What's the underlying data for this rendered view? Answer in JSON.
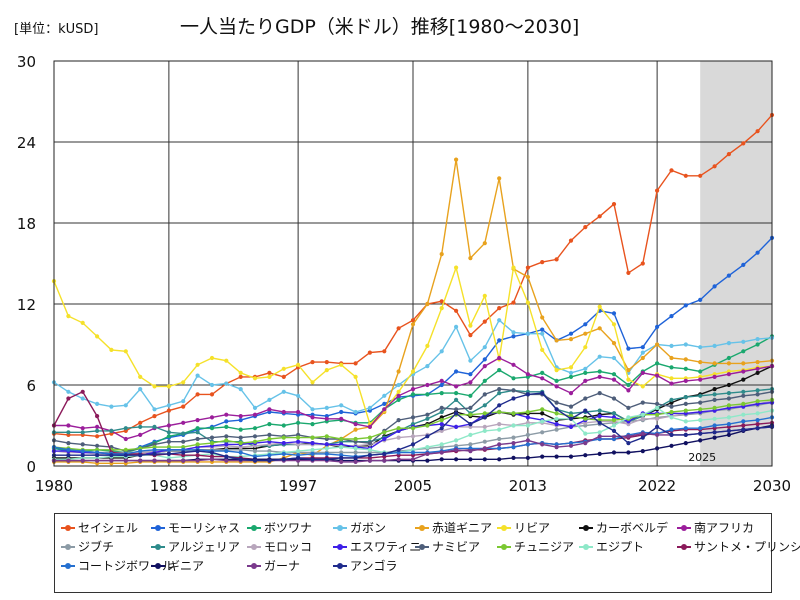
{
  "header": {
    "unit": "[単位：kUSD]"
  },
  "chart_data": {
    "type": "line",
    "title": "一人当たりGDP（米ドル）推移[1980～2030]",
    "ylabel": "単位：kUSD",
    "x": [
      1980,
      1981,
      1982,
      1983,
      1984,
      1985,
      1986,
      1987,
      1988,
      1989,
      1990,
      1991,
      1992,
      1993,
      1994,
      1995,
      1996,
      1997,
      1998,
      1999,
      2000,
      2001,
      2002,
      2003,
      2004,
      2005,
      2006,
      2007,
      2008,
      2009,
      2010,
      2011,
      2012,
      2013,
      2014,
      2015,
      2016,
      2017,
      2018,
      2019,
      2020,
      2021,
      2022,
      2023,
      2024,
      2025,
      2026,
      2027,
      2028,
      2029,
      2030
    ],
    "xlim": [
      1980,
      2030
    ],
    "ylim": [
      0,
      30
    ],
    "x_ticks": [
      "1980",
      "1988",
      "1997",
      "2005",
      "2013",
      "2022",
      "2030"
    ],
    "y_ticks": [
      "0",
      "6",
      "12",
      "18",
      "24",
      "30"
    ],
    "forecast_start": 2025,
    "forecast_label": "2025",
    "grid": true,
    "legend_position": "bottom",
    "series": [
      {
        "name": "セイシェル",
        "color": "#E8531E",
        "values": [
          2.4,
          2.3,
          2.3,
          2.2,
          2.4,
          2.6,
          3.2,
          3.7,
          4.1,
          4.4,
          5.3,
          5.3,
          6.1,
          6.6,
          6.6,
          6.9,
          6.6,
          7.3,
          7.7,
          7.7,
          7.6,
          7.6,
          8.4,
          8.5,
          10.2,
          10.8,
          12.0,
          12.2,
          11.5,
          9.7,
          10.7,
          11.7,
          12.1,
          14.7,
          15.1,
          15.3,
          16.7,
          17.7,
          18.5,
          19.4,
          14.3,
          15.0,
          20.4,
          21.9,
          21.5,
          21.5,
          22.2,
          23.1,
          23.9,
          24.8,
          26.0
        ]
      },
      {
        "name": "モーリシャス",
        "color": "#1F63D8",
        "values": [
          1.3,
          1.1,
          1.0,
          1.0,
          0.9,
          1.0,
          1.4,
          1.8,
          2.1,
          2.3,
          2.7,
          2.9,
          3.3,
          3.4,
          3.7,
          4.0,
          3.9,
          3.8,
          3.8,
          3.7,
          4.0,
          3.9,
          4.1,
          4.6,
          5.1,
          5.2,
          5.3,
          6.0,
          7.0,
          6.8,
          7.9,
          9.3,
          9.6,
          9.8,
          10.1,
          9.3,
          9.8,
          10.5,
          11.5,
          11.3,
          8.7,
          8.8,
          10.3,
          11.1,
          11.9,
          12.3,
          13.3,
          14.1,
          14.9,
          15.8,
          16.9
        ]
      },
      {
        "name": "ボツワナ",
        "color": "#1AA86E",
        "values": [
          1.3,
          1.2,
          1.1,
          1.2,
          1.1,
          1.0,
          1.3,
          1.7,
          2.2,
          2.4,
          2.8,
          2.8,
          2.9,
          2.7,
          2.8,
          3.1,
          3.0,
          3.2,
          3.1,
          3.3,
          3.4,
          3.2,
          3.2,
          4.2,
          4.9,
          5.3,
          5.3,
          5.4,
          5.4,
          5.2,
          6.3,
          7.1,
          6.5,
          6.6,
          6.9,
          6.3,
          6.6,
          6.9,
          7.0,
          6.8,
          6.0,
          7.0,
          7.6,
          7.3,
          7.2,
          7.0,
          7.5,
          8.0,
          8.5,
          9.0,
          9.6
        ]
      },
      {
        "name": "ガボン",
        "color": "#66C2E8",
        "values": [
          6.2,
          5.5,
          5.0,
          4.6,
          4.4,
          4.5,
          5.7,
          4.2,
          4.5,
          4.8,
          6.7,
          6.0,
          6.1,
          5.7,
          4.3,
          4.9,
          5.5,
          5.2,
          4.2,
          4.3,
          4.5,
          4.0,
          4.3,
          5.2,
          6.0,
          6.8,
          7.4,
          8.5,
          10.3,
          7.8,
          8.8,
          10.8,
          9.9,
          9.8,
          9.8,
          7.3,
          6.9,
          7.2,
          8.1,
          8.0,
          6.9,
          8.4,
          9.0,
          8.9,
          9.0,
          8.8,
          8.9,
          9.1,
          9.2,
          9.4,
          9.5
        ]
      },
      {
        "name": "赤道ギニア",
        "color": "#E8A21E",
        "values": [
          0.3,
          0.3,
          0.3,
          0.2,
          0.2,
          0.2,
          0.3,
          0.3,
          0.3,
          0.3,
          0.3,
          0.3,
          0.3,
          0.3,
          0.3,
          0.3,
          0.6,
          1.0,
          0.8,
          1.5,
          2.0,
          2.7,
          2.9,
          4.0,
          7.0,
          10.5,
          12.0,
          15.7,
          22.7,
          15.4,
          16.5,
          21.3,
          14.6,
          14.0,
          11.0,
          9.3,
          9.4,
          9.8,
          10.2,
          9.1,
          7.1,
          8.0,
          9.0,
          8.0,
          7.9,
          7.7,
          7.6,
          7.6,
          7.6,
          7.7,
          7.8
        ]
      },
      {
        "name": "リビア",
        "color": "#F5E12A",
        "values": [
          13.7,
          11.1,
          10.6,
          9.6,
          8.6,
          8.5,
          6.6,
          5.9,
          5.9,
          6.2,
          7.5,
          8.0,
          7.8,
          6.9,
          6.5,
          6.6,
          7.2,
          7.5,
          6.2,
          7.1,
          7.5,
          6.6,
          3.1,
          4.1,
          5.5,
          7.0,
          8.9,
          11.7,
          14.7,
          10.4,
          12.6,
          7.9,
          14.7,
          12.1,
          8.6,
          7.1,
          7.3,
          8.8,
          11.8,
          10.5,
          6.4,
          5.9,
          6.8,
          6.5,
          6.5,
          6.6,
          6.8,
          7.0,
          7.1,
          7.3,
          7.4
        ]
      },
      {
        "name": "カーボベルデ",
        "color": "#111111",
        "values": [
          0.6,
          0.6,
          0.6,
          0.6,
          0.6,
          0.6,
          0.8,
          1.0,
          1.1,
          1.1,
          1.2,
          1.2,
          1.3,
          1.3,
          1.3,
          1.5,
          1.6,
          1.6,
          1.7,
          1.6,
          1.4,
          1.5,
          1.5,
          2.2,
          2.6,
          2.9,
          3.1,
          3.6,
          4.0,
          3.7,
          3.6,
          4.0,
          3.8,
          3.9,
          3.9,
          3.4,
          3.5,
          3.6,
          3.8,
          3.9,
          3.3,
          3.7,
          4.2,
          4.7,
          5.1,
          5.3,
          5.7,
          6.0,
          6.4,
          6.9,
          7.4
        ]
      },
      {
        "name": "南アフリカ",
        "color": "#9B1E9B",
        "values": [
          3.0,
          3.0,
          2.8,
          2.9,
          2.6,
          2.0,
          2.3,
          2.8,
          3.0,
          3.2,
          3.4,
          3.6,
          3.8,
          3.7,
          3.8,
          4.2,
          4.0,
          4.0,
          3.6,
          3.5,
          3.5,
          3.1,
          2.9,
          4.2,
          5.2,
          5.7,
          6.0,
          6.3,
          5.9,
          6.2,
          7.4,
          8.0,
          7.5,
          6.8,
          6.5,
          5.9,
          5.4,
          6.3,
          6.6,
          6.4,
          5.6,
          6.9,
          6.7,
          6.1,
          6.3,
          6.4,
          6.6,
          6.8,
          7.0,
          7.2,
          7.4
        ]
      },
      {
        "name": "ジブチ",
        "color": "#8C9BA6",
        "values": [
          1.1,
          1.1,
          1.1,
          1.0,
          1.0,
          1.0,
          1.0,
          1.0,
          1.1,
          1.1,
          1.2,
          1.2,
          1.2,
          1.2,
          1.1,
          1.1,
          1.0,
          1.0,
          1.0,
          1.0,
          1.0,
          1.0,
          1.0,
          1.0,
          1.1,
          1.2,
          1.3,
          1.4,
          1.5,
          1.6,
          1.8,
          2.0,
          2.1,
          2.3,
          2.5,
          2.7,
          2.9,
          3.0,
          3.1,
          3.2,
          3.3,
          3.4,
          3.6,
          3.7,
          3.8,
          3.9,
          4.1,
          4.2,
          4.4,
          4.5,
          4.7
        ]
      },
      {
        "name": "アルジェリア",
        "color": "#2E8B8B",
        "values": [
          2.5,
          2.5,
          2.5,
          2.6,
          2.6,
          2.8,
          2.9,
          2.9,
          2.5,
          2.4,
          2.5,
          1.8,
          1.8,
          1.8,
          1.5,
          1.5,
          1.6,
          1.6,
          1.6,
          1.6,
          1.8,
          1.8,
          1.8,
          2.1,
          2.6,
          3.1,
          3.5,
          4.0,
          4.9,
          3.9,
          4.5,
          5.4,
          5.6,
          5.5,
          5.5,
          4.2,
          3.9,
          4.0,
          4.1,
          3.9,
          3.3,
          3.7,
          4.3,
          4.9,
          5.1,
          5.2,
          5.3,
          5.4,
          5.5,
          5.6,
          5.7
        ]
      },
      {
        "name": "モロッコ",
        "color": "#B8A6BC",
        "values": [
          1.1,
          1.0,
          1.0,
          0.9,
          0.8,
          0.8,
          1.0,
          1.1,
          1.2,
          1.2,
          1.4,
          1.4,
          1.5,
          1.4,
          1.5,
          1.6,
          1.7,
          1.6,
          1.6,
          1.6,
          1.5,
          1.5,
          1.6,
          1.9,
          2.1,
          2.2,
          2.3,
          2.6,
          2.9,
          2.9,
          2.9,
          3.1,
          3.0,
          3.2,
          3.2,
          3.0,
          3.0,
          3.2,
          3.3,
          3.3,
          3.1,
          3.5,
          3.5,
          3.7,
          3.9,
          4.0,
          4.1,
          4.3,
          4.5,
          4.6,
          4.8
        ]
      },
      {
        "name": "エスワティニ",
        "color": "#3D1FE8",
        "values": [
          1.1,
          1.1,
          1.0,
          1.0,
          0.9,
          0.7,
          0.8,
          1.0,
          1.2,
          1.2,
          1.4,
          1.5,
          1.6,
          1.6,
          1.7,
          1.8,
          1.7,
          1.8,
          1.7,
          1.6,
          1.6,
          1.4,
          1.3,
          2.0,
          2.6,
          2.9,
          3.0,
          3.1,
          2.9,
          3.1,
          3.8,
          4.0,
          3.9,
          3.6,
          3.4,
          3.1,
          2.9,
          3.4,
          3.7,
          3.6,
          3.3,
          3.9,
          3.9,
          3.9,
          3.9,
          4.0,
          4.1,
          4.3,
          4.4,
          4.6,
          4.7
        ]
      },
      {
        "name": "ナミビア",
        "color": "#4E5E7A",
        "values": [
          1.9,
          1.7,
          1.6,
          1.5,
          1.4,
          1.1,
          1.3,
          1.6,
          1.8,
          1.8,
          2.0,
          2.1,
          2.2,
          2.1,
          2.2,
          2.3,
          2.2,
          2.3,
          2.1,
          2.0,
          2.0,
          1.8,
          1.7,
          2.6,
          3.4,
          3.6,
          3.8,
          4.3,
          4.2,
          4.3,
          5.3,
          5.7,
          5.6,
          5.3,
          5.3,
          4.7,
          4.4,
          5.0,
          5.4,
          5.0,
          4.3,
          4.7,
          4.6,
          4.4,
          4.6,
          4.7,
          4.9,
          5.0,
          5.2,
          5.3,
          5.5
        ]
      },
      {
        "name": "チュニジア",
        "color": "#7BC832",
        "values": [
          1.4,
          1.3,
          1.2,
          1.2,
          1.2,
          1.2,
          1.3,
          1.4,
          1.4,
          1.4,
          1.6,
          1.7,
          1.9,
          1.7,
          1.8,
          2.0,
          2.1,
          2.1,
          2.1,
          2.2,
          2.0,
          2.0,
          2.1,
          2.5,
          2.8,
          2.8,
          3.0,
          3.4,
          3.8,
          3.8,
          3.9,
          4.0,
          3.9,
          4.0,
          4.2,
          3.9,
          3.7,
          3.5,
          3.4,
          3.4,
          3.5,
          3.8,
          3.8,
          4.0,
          4.1,
          4.2,
          4.3,
          4.5,
          4.6,
          4.8,
          4.9
        ]
      },
      {
        "name": "エジプト",
        "color": "#8EE8C8",
        "values": [
          0.5,
          0.5,
          0.6,
          0.6,
          0.7,
          0.7,
          0.8,
          0.8,
          0.6,
          0.7,
          0.8,
          0.9,
          0.7,
          0.7,
          0.8,
          0.9,
          1.0,
          1.1,
          1.2,
          1.3,
          1.4,
          1.3,
          1.2,
          1.0,
          1.0,
          1.2,
          1.4,
          1.6,
          1.9,
          2.3,
          2.6,
          2.7,
          3.0,
          3.0,
          3.3,
          3.5,
          3.5,
          2.4,
          2.5,
          3.0,
          3.6,
          3.8,
          4.3,
          3.6,
          3.3,
          3.4,
          3.5,
          3.6,
          3.8,
          3.9,
          4.1
        ]
      },
      {
        "name": "サントメ・プリンシペ",
        "color": "#8B1A5A",
        "values": [
          3.0,
          5.0,
          5.5,
          3.7,
          1.0,
          0.9,
          0.9,
          0.8,
          0.9,
          0.8,
          0.8,
          0.7,
          0.7,
          0.6,
          0.5,
          0.5,
          0.5,
          0.6,
          0.6,
          0.6,
          0.6,
          0.6,
          0.6,
          0.7,
          0.8,
          0.8,
          0.9,
          1.0,
          1.1,
          1.2,
          1.2,
          1.3,
          1.4,
          1.6,
          1.7,
          1.6,
          1.7,
          1.9,
          2.0,
          2.0,
          2.1,
          2.3,
          2.4,
          2.6,
          2.7,
          2.7,
          2.8,
          2.9,
          3.0,
          3.1,
          3.2
        ]
      },
      {
        "name": "コートジボワール",
        "color": "#2570D0",
        "values": [
          1.4,
          1.2,
          1.1,
          1.0,
          0.9,
          0.9,
          1.1,
          1.2,
          1.2,
          1.2,
          1.2,
          1.1,
          1.1,
          1.0,
          0.7,
          0.8,
          0.9,
          0.8,
          0.9,
          0.9,
          0.8,
          0.7,
          0.8,
          0.9,
          1.0,
          1.0,
          1.0,
          1.1,
          1.3,
          1.3,
          1.3,
          1.3,
          1.4,
          1.6,
          1.7,
          1.6,
          1.7,
          1.8,
          2.0,
          2.0,
          2.3,
          2.5,
          2.4,
          2.7,
          2.8,
          2.8,
          3.0,
          3.1,
          3.3,
          3.4,
          3.6
        ]
      },
      {
        "name": "ギニア",
        "color": "#101060",
        "values": [
          0.4,
          0.4,
          0.4,
          0.4,
          0.4,
          0.4,
          0.4,
          0.4,
          0.4,
          0.4,
          0.5,
          0.5,
          0.5,
          0.5,
          0.5,
          0.5,
          0.5,
          0.5,
          0.5,
          0.5,
          0.4,
          0.4,
          0.4,
          0.4,
          0.4,
          0.4,
          0.4,
          0.5,
          0.5,
          0.5,
          0.5,
          0.5,
          0.6,
          0.6,
          0.7,
          0.7,
          0.7,
          0.8,
          0.9,
          1.0,
          1.0,
          1.1,
          1.3,
          1.5,
          1.7,
          1.9,
          2.1,
          2.3,
          2.6,
          2.8,
          3.0
        ]
      },
      {
        "name": "ガーナ",
        "color": "#7A3A8C",
        "values": [
          0.4,
          0.4,
          0.4,
          0.4,
          0.4,
          0.4,
          0.4,
          0.4,
          0.4,
          0.4,
          0.4,
          0.5,
          0.4,
          0.4,
          0.4,
          0.4,
          0.4,
          0.4,
          0.4,
          0.4,
          0.3,
          0.3,
          0.4,
          0.4,
          0.5,
          0.5,
          0.9,
          1.0,
          1.2,
          1.1,
          1.3,
          1.6,
          1.7,
          1.9,
          1.6,
          1.4,
          1.5,
          1.7,
          2.2,
          2.2,
          2.2,
          2.4,
          2.3,
          2.3,
          2.3,
          2.4,
          2.5,
          2.6,
          2.7,
          2.8,
          2.9
        ]
      },
      {
        "name": "アンゴラ",
        "color": "#1E2A8C",
        "values": [
          0.8,
          0.8,
          0.8,
          0.8,
          0.8,
          0.8,
          0.8,
          0.9,
          0.9,
          1.0,
          1.1,
          1.0,
          0.7,
          0.5,
          0.4,
          0.4,
          0.5,
          0.6,
          0.5,
          0.5,
          0.6,
          0.6,
          0.8,
          0.9,
          1.2,
          1.6,
          2.2,
          2.8,
          3.9,
          3.1,
          3.6,
          4.5,
          5.0,
          5.3,
          5.4,
          4.2,
          3.5,
          4.1,
          3.2,
          2.6,
          1.7,
          2.1,
          2.9,
          2.3,
          2.3,
          2.4,
          2.5,
          2.6,
          2.7,
          2.8,
          2.9
        ]
      }
    ]
  }
}
